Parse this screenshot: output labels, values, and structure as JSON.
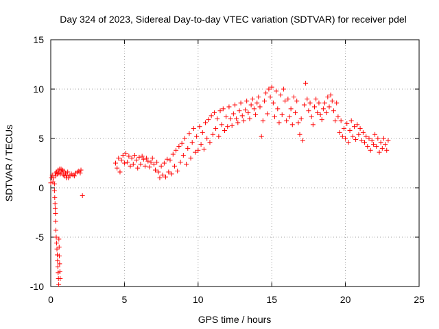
{
  "chart_data": {
    "type": "scatter",
    "title": "Day 324 of 2023, Sidereal Day-to-day VTEC variation (SDTVAR) for receiver pdel",
    "xlabel": "GPS time / hours",
    "ylabel": "SDTVAR / TECUs",
    "xlim": [
      0,
      25
    ],
    "ylim": [
      -10,
      15
    ],
    "xticks": [
      0,
      5,
      10,
      15,
      20,
      25
    ],
    "yticks": [
      -10,
      -5,
      0,
      5,
      10,
      15
    ],
    "grid": true,
    "marker": "+",
    "series": [
      {
        "name": "SDTVAR",
        "color": "#ff0000",
        "points": [
          [
            0.0,
            0.5
          ],
          [
            0.05,
            1.0
          ],
          [
            0.1,
            1.3
          ],
          [
            0.15,
            0.6
          ],
          [
            0.2,
            1.0
          ],
          [
            0.25,
            0.4
          ],
          [
            0.3,
            1.5
          ],
          [
            0.35,
            1.2
          ],
          [
            0.4,
            1.6
          ],
          [
            0.45,
            1.4
          ],
          [
            0.5,
            1.8
          ],
          [
            0.55,
            1.5
          ],
          [
            0.6,
            1.9
          ],
          [
            0.65,
            1.4
          ],
          [
            0.7,
            1.9
          ],
          [
            0.75,
            1.6
          ],
          [
            0.8,
            1.8
          ],
          [
            0.85,
            1.3
          ],
          [
            0.9,
            1.7
          ],
          [
            0.95,
            1.2
          ],
          [
            1.0,
            1.5
          ],
          [
            1.05,
            1.0
          ],
          [
            1.1,
            1.3
          ],
          [
            1.15,
            1.6
          ],
          [
            1.2,
            1.0
          ],
          [
            1.3,
            1.2
          ],
          [
            1.4,
            1.4
          ],
          [
            1.5,
            1.3
          ],
          [
            1.6,
            1.2
          ],
          [
            1.7,
            1.5
          ],
          [
            1.8,
            1.6
          ],
          [
            1.9,
            1.7
          ],
          [
            2.0,
            1.5
          ],
          [
            2.05,
            1.8
          ],
          [
            0.25,
            -0.3
          ],
          [
            0.27,
            -1.0
          ],
          [
            0.29,
            -1.6
          ],
          [
            0.3,
            -2.1
          ],
          [
            0.32,
            -2.6
          ],
          [
            0.33,
            -3.4
          ],
          [
            0.35,
            -4.3
          ],
          [
            0.37,
            -5.0
          ],
          [
            0.4,
            -5.6
          ],
          [
            0.42,
            -6.2
          ],
          [
            0.44,
            -6.8
          ],
          [
            0.46,
            -7.4
          ],
          [
            0.48,
            -8.0
          ],
          [
            0.5,
            -8.6
          ],
          [
            0.52,
            -9.2
          ],
          [
            0.54,
            -9.8
          ],
          [
            0.55,
            -5.2
          ],
          [
            0.57,
            -6.0
          ],
          [
            0.58,
            -6.9
          ],
          [
            0.6,
            -7.7
          ],
          [
            0.62,
            -8.5
          ],
          [
            0.64,
            -9.2
          ],
          [
            2.15,
            -0.8
          ],
          [
            4.4,
            2.5
          ],
          [
            4.5,
            2.0
          ],
          [
            4.6,
            3.0
          ],
          [
            4.7,
            1.6
          ],
          [
            4.8,
            2.8
          ],
          [
            4.9,
            3.3
          ],
          [
            5.0,
            2.5
          ],
          [
            5.1,
            3.5
          ],
          [
            5.2,
            2.6
          ],
          [
            5.3,
            3.2
          ],
          [
            5.4,
            2.2
          ],
          [
            5.5,
            3.0
          ],
          [
            5.6,
            2.4
          ],
          [
            5.7,
            3.3
          ],
          [
            5.8,
            2.8
          ],
          [
            5.9,
            2.0
          ],
          [
            6.0,
            3.1
          ],
          [
            6.1,
            2.4
          ],
          [
            6.2,
            3.2
          ],
          [
            6.3,
            2.9
          ],
          [
            6.4,
            2.2
          ],
          [
            6.5,
            3.0
          ],
          [
            6.6,
            2.7
          ],
          [
            6.7,
            2.1
          ],
          [
            6.8,
            2.6
          ],
          [
            6.9,
            3.0
          ],
          [
            7.0,
            2.4
          ],
          [
            7.1,
            1.8
          ],
          [
            7.2,
            2.6
          ],
          [
            7.3,
            1.6
          ],
          [
            7.4,
            1.0
          ],
          [
            7.5,
            2.2
          ],
          [
            7.6,
            1.3
          ],
          [
            7.7,
            2.5
          ],
          [
            7.8,
            1.1
          ],
          [
            7.9,
            2.9
          ],
          [
            8.0,
            1.6
          ],
          [
            8.1,
            2.8
          ],
          [
            8.2,
            1.4
          ],
          [
            8.3,
            3.4
          ],
          [
            8.4,
            2.2
          ],
          [
            8.5,
            3.8
          ],
          [
            8.6,
            1.7
          ],
          [
            8.7,
            4.2
          ],
          [
            8.8,
            2.6
          ],
          [
            8.9,
            4.5
          ],
          [
            9.0,
            3.3
          ],
          [
            9.1,
            5.0
          ],
          [
            9.2,
            2.4
          ],
          [
            9.3,
            4.0
          ],
          [
            9.4,
            5.5
          ],
          [
            9.5,
            3.0
          ],
          [
            9.6,
            4.6
          ],
          [
            9.7,
            6.0
          ],
          [
            9.8,
            3.6
          ],
          [
            9.9,
            5.2
          ],
          [
            10.0,
            3.8
          ],
          [
            10.1,
            6.2
          ],
          [
            10.2,
            4.4
          ],
          [
            10.3,
            5.6
          ],
          [
            10.4,
            3.9
          ],
          [
            10.5,
            6.6
          ],
          [
            10.6,
            5.0
          ],
          [
            10.7,
            6.9
          ],
          [
            10.8,
            4.6
          ],
          [
            10.9,
            7.3
          ],
          [
            11.0,
            5.4
          ],
          [
            11.1,
            7.6
          ],
          [
            11.2,
            6.0
          ],
          [
            11.3,
            7.0
          ],
          [
            11.4,
            5.2
          ],
          [
            11.5,
            7.8
          ],
          [
            11.6,
            6.4
          ],
          [
            11.7,
            8.0
          ],
          [
            11.8,
            5.8
          ],
          [
            11.9,
            7.2
          ],
          [
            12.0,
            6.2
          ],
          [
            12.1,
            8.2
          ],
          [
            12.2,
            7.0
          ],
          [
            12.3,
            6.3
          ],
          [
            12.4,
            7.5
          ],
          [
            12.5,
            8.4
          ],
          [
            12.6,
            7.0
          ],
          [
            12.7,
            6.6
          ],
          [
            12.8,
            7.8
          ],
          [
            12.9,
            8.6
          ],
          [
            13.0,
            7.3
          ],
          [
            13.1,
            6.8
          ],
          [
            13.2,
            7.9
          ],
          [
            13.3,
            8.8
          ],
          [
            13.4,
            7.6
          ],
          [
            13.5,
            7.0
          ],
          [
            13.6,
            8.4
          ],
          [
            13.7,
            9.0
          ],
          [
            13.8,
            8.0
          ],
          [
            13.9,
            7.4
          ],
          [
            14.0,
            8.6
          ],
          [
            14.1,
            9.2
          ],
          [
            14.2,
            8.2
          ],
          [
            14.3,
            5.2
          ],
          [
            14.4,
            6.8
          ],
          [
            14.5,
            8.8
          ],
          [
            14.6,
            9.6
          ],
          [
            14.7,
            7.5
          ],
          [
            14.8,
            10.0
          ],
          [
            14.9,
            9.2
          ],
          [
            15.0,
            10.2
          ],
          [
            15.1,
            8.6
          ],
          [
            15.2,
            7.2
          ],
          [
            15.3,
            9.8
          ],
          [
            15.4,
            8.0
          ],
          [
            15.5,
            6.6
          ],
          [
            15.6,
            9.4
          ],
          [
            15.7,
            7.4
          ],
          [
            15.8,
            10.0
          ],
          [
            15.9,
            8.8
          ],
          [
            16.0,
            6.8
          ],
          [
            16.1,
            9.0
          ],
          [
            16.2,
            7.2
          ],
          [
            16.3,
            8.0
          ],
          [
            16.4,
            6.4
          ],
          [
            16.5,
            9.2
          ],
          [
            16.6,
            7.6
          ],
          [
            16.7,
            8.8
          ],
          [
            16.8,
            6.6
          ],
          [
            16.9,
            5.4
          ],
          [
            17.0,
            7.0
          ],
          [
            17.1,
            4.8
          ],
          [
            17.2,
            8.4
          ],
          [
            17.3,
            10.6
          ],
          [
            17.4,
            9.0
          ],
          [
            17.5,
            7.8
          ],
          [
            17.6,
            8.6
          ],
          [
            17.7,
            7.2
          ],
          [
            17.8,
            6.4
          ],
          [
            17.9,
            8.2
          ],
          [
            18.0,
            9.0
          ],
          [
            18.1,
            7.6
          ],
          [
            18.2,
            8.6
          ],
          [
            18.3,
            7.4
          ],
          [
            18.4,
            6.9
          ],
          [
            18.5,
            8.0
          ],
          [
            18.6,
            8.6
          ],
          [
            18.7,
            7.6
          ],
          [
            18.8,
            9.2
          ],
          [
            18.9,
            8.2
          ],
          [
            19.0,
            9.4
          ],
          [
            19.1,
            8.8
          ],
          [
            19.2,
            7.8
          ],
          [
            19.3,
            6.8
          ],
          [
            19.4,
            8.6
          ],
          [
            19.5,
            7.2
          ],
          [
            19.6,
            5.6
          ],
          [
            19.7,
            6.8
          ],
          [
            19.8,
            5.2
          ],
          [
            19.9,
            6.0
          ],
          [
            20.0,
            5.0
          ],
          [
            20.1,
            6.5
          ],
          [
            20.2,
            4.6
          ],
          [
            20.3,
            5.8
          ],
          [
            20.4,
            6.8
          ],
          [
            20.5,
            5.2
          ],
          [
            20.6,
            6.2
          ],
          [
            20.7,
            4.9
          ],
          [
            20.8,
            6.4
          ],
          [
            20.9,
            5.4
          ],
          [
            21.0,
            6.0
          ],
          [
            21.1,
            4.8
          ],
          [
            21.2,
            5.6
          ],
          [
            21.3,
            4.6
          ],
          [
            21.4,
            5.2
          ],
          [
            21.5,
            4.2
          ],
          [
            21.6,
            5.0
          ],
          [
            21.7,
            3.8
          ],
          [
            21.8,
            4.8
          ],
          [
            21.9,
            4.4
          ],
          [
            22.0,
            5.4
          ],
          [
            22.1,
            4.2
          ],
          [
            22.2,
            5.0
          ],
          [
            22.3,
            3.6
          ],
          [
            22.4,
            4.6
          ],
          [
            22.5,
            4.0
          ],
          [
            22.6,
            5.0
          ],
          [
            22.7,
            4.4
          ],
          [
            22.8,
            3.8
          ],
          [
            22.9,
            4.8
          ]
        ]
      }
    ]
  }
}
